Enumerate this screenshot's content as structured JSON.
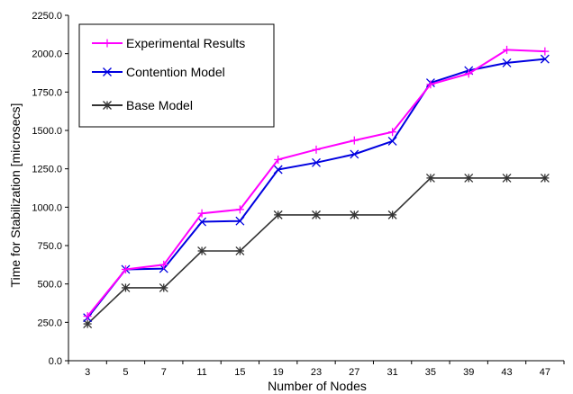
{
  "chart_data": {
    "type": "line",
    "title": "",
    "xlabel": "Number of Nodes",
    "ylabel": "Time for Stabilization [microsecs]",
    "categories": [
      "3",
      "5",
      "7",
      "11",
      "15",
      "19",
      "23",
      "27",
      "31",
      "35",
      "39",
      "43",
      "47"
    ],
    "ylim": [
      0,
      2250
    ],
    "yticks": [
      "0.0",
      "250.0",
      "500.0",
      "750.0",
      "1000.0",
      "1250.0",
      "1500.0",
      "1750.0",
      "2000.0",
      "2250.0"
    ],
    "grid": false,
    "legend_position": "top-left",
    "series": [
      {
        "name": "Experimental Results",
        "color": "#ff00ff",
        "marker": "plus",
        "values": [
          290,
          595,
          625,
          960,
          985,
          1310,
          1375,
          1435,
          1490,
          1800,
          1870,
          2025,
          2015
        ]
      },
      {
        "name": "Contention Model",
        "color": "#0000e0",
        "marker": "x",
        "values": [
          280,
          595,
          600,
          905,
          910,
          1245,
          1290,
          1345,
          1430,
          1810,
          1890,
          1940,
          1965
        ]
      },
      {
        "name": "Base Model",
        "color": "#333333",
        "marker": "asterisk",
        "values": [
          240,
          475,
          475,
          715,
          715,
          950,
          950,
          950,
          950,
          1190,
          1190,
          1190,
          1190
        ]
      }
    ]
  }
}
